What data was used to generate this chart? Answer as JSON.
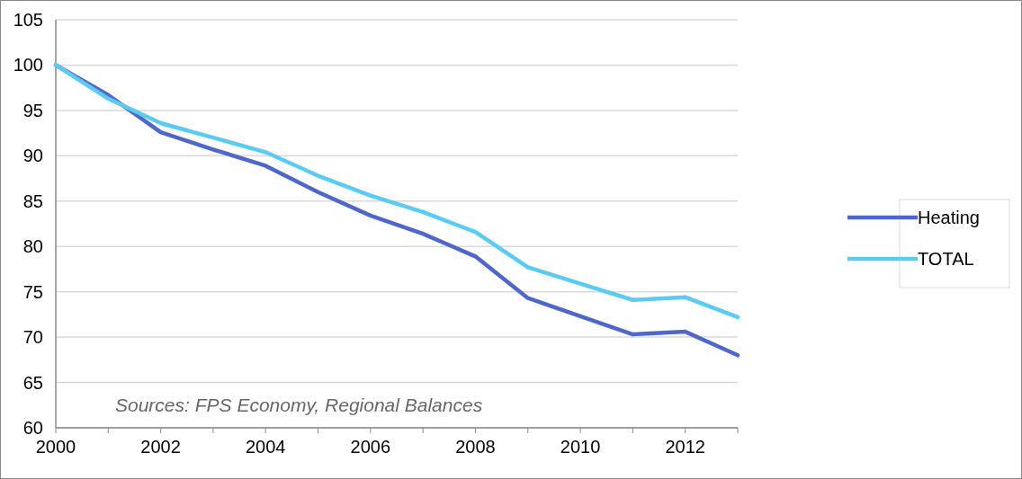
{
  "chart_data": {
    "type": "line",
    "x": [
      2000,
      2001,
      2002,
      2003,
      2004,
      2005,
      2006,
      2007,
      2008,
      2009,
      2010,
      2011,
      2012,
      2013
    ],
    "series": [
      {
        "name": "Heating",
        "color": "#4f67c9",
        "values": [
          100,
          96.7,
          92.6,
          90.7,
          88.9,
          86.0,
          83.4,
          81.4,
          78.9,
          74.3,
          72.3,
          70.3,
          70.6,
          68.0
        ]
      },
      {
        "name": "TOTAL",
        "color": "#5bcbf2",
        "values": [
          100,
          96.3,
          93.6,
          92.0,
          90.4,
          87.8,
          85.6,
          83.8,
          81.6,
          77.7,
          75.9,
          74.1,
          74.4,
          72.2
        ]
      }
    ],
    "xlim": [
      2000,
      2013
    ],
    "xticks": [
      2000,
      2002,
      2004,
      2006,
      2008,
      2010,
      2012
    ],
    "ylim": [
      60,
      105
    ],
    "yticks": [
      60,
      65,
      70,
      75,
      80,
      85,
      90,
      95,
      100,
      105
    ],
    "grid": "y",
    "legend": "right",
    "marker": "none",
    "line_style": "solid",
    "annotations": [
      "Sources: FPS Economy, Regional Balances"
    ]
  }
}
